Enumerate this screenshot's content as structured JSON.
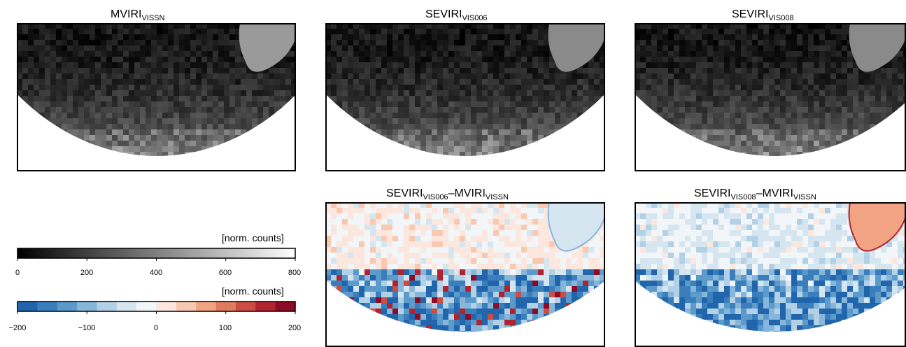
{
  "chart_data": [
    {
      "type": "heatmap",
      "title": "MVIRI",
      "title_sub": "VISSN",
      "colormap": "greys",
      "colorbar": "norm_counts"
    },
    {
      "type": "heatmap",
      "title": "SEVIRI",
      "title_sub": "VIS006",
      "colormap": "greys",
      "colorbar": "norm_counts"
    },
    {
      "type": "heatmap",
      "title": "SEVIRI",
      "title_sub": "VIS008",
      "colormap": "greys",
      "colorbar": "norm_counts"
    },
    {
      "type": "heatmap",
      "title": "SEVIRI",
      "title_sub": "VIS006",
      "title_mid": "–MVIRI",
      "title_sub2": "VISSN",
      "colormap": "red-blue diverging",
      "colorbar": "difference"
    },
    {
      "type": "heatmap",
      "title": "SEVIRI",
      "title_sub": "VIS008",
      "title_mid": "–MVIRI",
      "title_sub2": "VISSN",
      "colormap": "red-blue diverging",
      "colorbar": "difference"
    }
  ],
  "colorbars": {
    "norm_counts": {
      "label": "[norm. counts]",
      "range": [
        0,
        800
      ],
      "ticks": [
        "0",
        "200",
        "400",
        "600",
        "800"
      ],
      "colors": [
        "#000000",
        "#ffffff"
      ]
    },
    "difference": {
      "label": "[norm. counts]",
      "range": [
        -200,
        200
      ],
      "ticks": [
        "−200",
        "−100",
        "0",
        "100",
        "200"
      ],
      "colors": [
        "#2166ac",
        "#3a7fbc",
        "#5b9acb",
        "#86b7da",
        "#b2d1e6",
        "#d6e6f1",
        "#f3f6f9",
        "#fbe7dd",
        "#f8c9b0",
        "#f2a383",
        "#e07a5f",
        "#cb4d44",
        "#b0242f",
        "#8c0b25"
      ]
    }
  }
}
